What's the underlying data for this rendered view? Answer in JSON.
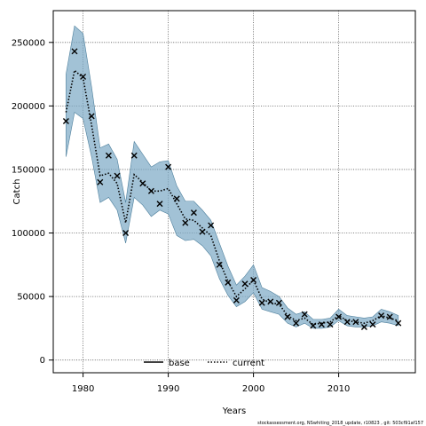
{
  "chart_data": {
    "type": "line",
    "xlabel": "Years",
    "ylabel": "Catch",
    "xlim": [
      1976.5,
      2019
    ],
    "ylim": [
      -10000,
      275000
    ],
    "x_ticks": [
      1980,
      1990,
      2000,
      2010
    ],
    "y_ticks": [
      0,
      50000,
      100000,
      150000,
      200000,
      250000
    ],
    "grid": true,
    "legend_position": "bottom",
    "legend": [
      {
        "name": "base",
        "style": "solid",
        "color": "#000000"
      },
      {
        "name": "current",
        "style": "dotted",
        "color": "#000000"
      }
    ],
    "band_color": "#7aa8c4",
    "years": [
      1978,
      1979,
      1980,
      1981,
      1982,
      1983,
      1984,
      1985,
      1986,
      1987,
      1988,
      1989,
      1990,
      1991,
      1992,
      1993,
      1994,
      1995,
      1996,
      1997,
      1998,
      1999,
      2000,
      2001,
      2002,
      2003,
      2004,
      2005,
      2006,
      2007,
      2008,
      2009,
      2010,
      2011,
      2012,
      2013,
      2014,
      2015,
      2016,
      2017
    ],
    "series": [
      {
        "name": "current",
        "values": [
          195000,
          228000,
          222000,
          185000,
          145000,
          147000,
          139000,
          108000,
          146000,
          140000,
          133000,
          133000,
          135000,
          123000,
          111000,
          110000,
          104000,
          98000,
          78000,
          62000,
          50000,
          56000,
          63000,
          48000,
          45000,
          44000,
          35000,
          31000,
          33000,
          28000,
          29000,
          30000,
          35000,
          31000,
          30000,
          29000,
          31000,
          35000,
          33000,
          31000
        ],
        "lower": [
          160000,
          195000,
          190000,
          160000,
          124000,
          128000,
          118000,
          92000,
          128000,
          122000,
          113000,
          118000,
          115000,
          98000,
          94000,
          95000,
          90000,
          82000,
          64000,
          51000,
          42000,
          46000,
          53000,
          40000,
          38000,
          36000,
          29000,
          26000,
          29000,
          25000,
          25000,
          26000,
          31000,
          27000,
          26000,
          26000,
          27000,
          30000,
          29000,
          27000
        ],
        "upper": [
          225000,
          263000,
          257000,
          215000,
          167000,
          170000,
          158000,
          124000,
          172000,
          162000,
          152000,
          156000,
          157000,
          137000,
          125000,
          125000,
          118000,
          110000,
          92000,
          74000,
          59000,
          66000,
          75000,
          57000,
          54000,
          50000,
          41000,
          36000,
          38000,
          32000,
          32000,
          33000,
          40000,
          35000,
          34000,
          33000,
          34000,
          40000,
          38000,
          35000
        ]
      },
      {
        "name": "observed",
        "marker": "x",
        "values": [
          188000,
          243000,
          223000,
          192000,
          140000,
          161000,
          145000,
          100000,
          161000,
          139000,
          133000,
          123000,
          152000,
          127000,
          108000,
          116000,
          101000,
          106000,
          75000,
          61000,
          47000,
          60000,
          63000,
          45000,
          46000,
          45000,
          34000,
          29000,
          36000,
          27000,
          28000,
          28000,
          34000,
          30000,
          30000,
          26000,
          28000,
          35000,
          34000,
          29000
        ]
      }
    ],
    "footnote": "stockassessment.org, NSwhiting_2018_update, r10823 , git: 503cf91af157"
  }
}
